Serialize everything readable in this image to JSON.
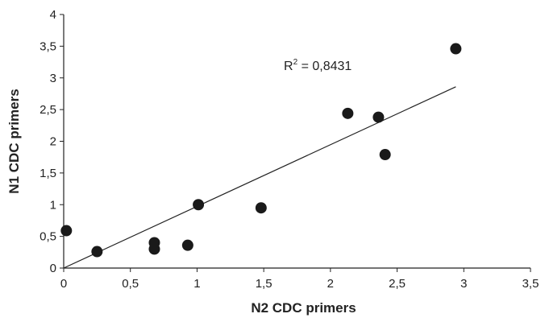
{
  "chart_data": {
    "type": "scatter",
    "title": "",
    "xlabel": "N2 CDC primers",
    "ylabel": "N1 CDC primers",
    "xlim": [
      0,
      3.5
    ],
    "ylim": [
      0,
      4
    ],
    "x_ticks": [
      "0",
      "0,5",
      "1",
      "1,5",
      "2",
      "2,5",
      "3",
      "3,5"
    ],
    "y_ticks": [
      "0",
      "0,5",
      "1",
      "1,5",
      "2",
      "2,5",
      "3",
      "3,5",
      "4"
    ],
    "grid": false,
    "legend": "none",
    "points": [
      {
        "x": 0.02,
        "y": 0.59
      },
      {
        "x": 0.25,
        "y": 0.26
      },
      {
        "x": 0.68,
        "y": 0.3
      },
      {
        "x": 0.68,
        "y": 0.4
      },
      {
        "x": 0.93,
        "y": 0.36
      },
      {
        "x": 1.01,
        "y": 1.0
      },
      {
        "x": 1.48,
        "y": 0.95
      },
      {
        "x": 2.13,
        "y": 2.44
      },
      {
        "x": 2.36,
        "y": 2.38
      },
      {
        "x": 2.41,
        "y": 1.79
      },
      {
        "x": 2.94,
        "y": 3.46
      }
    ],
    "trendline": {
      "type": "linear",
      "x": [
        0.0,
        2.94
      ],
      "y": [
        0.0,
        2.86
      ]
    },
    "annotation": {
      "r_prefix": "R",
      "r_exp": "2",
      "text": " = 0,8431"
    },
    "colors": {
      "points": "#1a1a1a",
      "axis": "#222222",
      "trendline": "#222222"
    }
  }
}
